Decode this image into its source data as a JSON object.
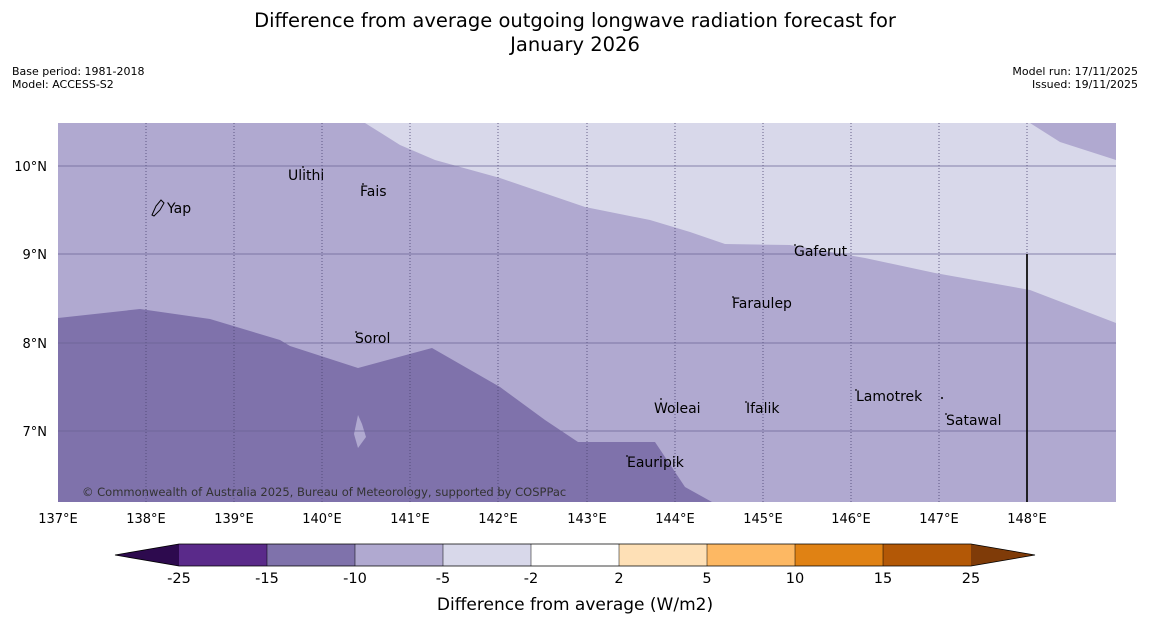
{
  "title_line1": "Difference from average outgoing longwave radiation forecast for",
  "title_line2": "January 2026",
  "base_period": "Base period: 1981-2018",
  "model": "Model: ACCESS-S2",
  "model_run": "Model run: 17/11/2025",
  "issued": "Issued: 19/11/2025",
  "copyright": "© Commonwealth of Australia 2025, Bureau of Meteorology, supported by COSPPac",
  "map": {
    "lon_labels": [
      "137°E",
      "138°E",
      "139°E",
      "140°E",
      "141°E",
      "142°E",
      "143°E",
      "144°E",
      "145°E",
      "146°E",
      "147°E",
      "148°E"
    ],
    "lat_labels": [
      "10°N",
      "9°N",
      "8°N",
      "7°N"
    ],
    "places": [
      {
        "name": "Ulithi"
      },
      {
        "name": "Fais"
      },
      {
        "name": "Yap"
      },
      {
        "name": "Gaferut"
      },
      {
        "name": "Faraulep"
      },
      {
        "name": "Sorol"
      },
      {
        "name": "Lamotrek"
      },
      {
        "name": "Woleai"
      },
      {
        "name": "Ifalik"
      },
      {
        "name": "Satawal"
      },
      {
        "name": "Eauripik"
      }
    ]
  },
  "colorbar": {
    "label": "Difference from average (W/m2)",
    "ticks": [
      "-25",
      "-15",
      "-10",
      "-5",
      "-2",
      "2",
      "5",
      "10",
      "15",
      "25"
    ],
    "colors": {
      "below": "#2d0a4e",
      "c1": "#5a2a8a",
      "c2": "#7f72ab",
      "c3": "#b0a9d0",
      "c4": "#d8d8ea",
      "c5": "#ffffff",
      "c6": "#fee0b6",
      "c7": "#fdb863",
      "c8": "#e08214",
      "c9": "#b35806",
      "above": "#7f3b08"
    }
  }
}
